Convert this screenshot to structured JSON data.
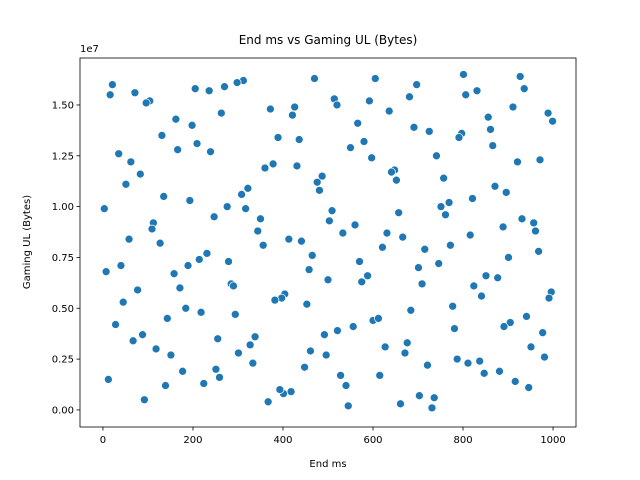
{
  "chart_data": {
    "type": "scatter",
    "title": "End ms vs Gaming UL (Bytes)",
    "x_label": "End ms",
    "y_label": "Gaming UL (Bytes)",
    "y_offset_label": "1e7",
    "color": "#1f77b4",
    "xlim": [
      -51,
      1051
    ],
    "ylim": [
      -0.084,
      1.731
    ],
    "xticks": [
      0,
      200,
      400,
      600,
      800,
      1000
    ],
    "yticks": [
      {
        "value": 0,
        "label": "0.00"
      },
      0.25,
      {
        "value": 0.5,
        "label": "0.50"
      },
      0.75,
      {
        "value": 1,
        "label": "1.00"
      },
      1.25,
      {
        "value": 1.5,
        "label": "1.50"
      }
    ],
    "series": [
      {
        "name": "Gaming UL (Bytes)",
        "color": "#1f77b4",
        "x": [
          3,
          21,
          45,
          62,
          88,
          104,
          127,
          143,
          166,
          189,
          205,
          224,
          247,
          263,
          285,
          301,
          322,
          344,
          367,
          389,
          404,
          426,
          448,
          465,
          487,
          503,
          521,
          545,
          566,
          588,
          605,
          627,
          648,
          666,
          684,
          703,
          725,
          746,
          769,
          787,
          806,
          824,
          847,
          866,
          889,
          905,
          927,
          946,
          968,
          989,
          12,
          35,
          58,
          77,
          96,
          118,
          135,
          158,
          177,
          198,
          214,
          236,
          255,
          276,
          294,
          312,
          333,
          356,
          378,
          397,
          418,
          436,
          458,
          476,
          496,
          514,
          533,
          556,
          575,
          597,
          615,
          636,
          657,
          676,
          697,
          715,
          736,
          757,
          777,
          797,
          816,
          837,
          856,
          877,
          896,
          916,
          936,
          957,
          977,
          996,
          7,
          28,
          51,
          71,
          92,
          112,
          131,
          151,
          171,
          193,
          218,
          239,
          259,
          279,
          298,
          317,
          338,
          360,
          382,
          401,
          421,
          441,
          461,
          481,
          500,
          520,
          540,
          560,
          580,
          600,
          621,
          641,
          661,
          681,
          701,
          721,
          741,
          761,
          781,
          801,
          821,
          841,
          861,
          881,
          901,
          921,
          941,
          961,
          981,
          999,
          16,
          40,
          67,
          83,
          109,
          139,
          162,
          184,
          209,
          231,
          251,
          270,
          290,
          308,
          327,
          350,
          372,
          393,
          413,
          431,
          453,
          470,
          492,
          509,
          528,
          550,
          570,
          592,
          612,
          631,
          652,
          671,
          691,
          709,
          731,
          751,
          772,
          791,
          811,
          831,
          851,
          871,
          891,
          911,
          931,
          951,
          971,
          991
        ],
        "values": [
          0.99,
          1.6,
          0.53,
          1.22,
          0.37,
          1.52,
          0.82,
          0.45,
          1.28,
          0.71,
          1.58,
          0.13,
          0.95,
          1.46,
          0.62,
          0.28,
          1.09,
          0.88,
          0.04,
          1.34,
          0.57,
          1.49,
          0.21,
          0.76,
          1.15,
          0.93,
          0.39,
          0.02,
          1.41,
          0.66,
          1.63,
          0.31,
          1.18,
          0.85,
          0.49,
          0.07,
          1.37,
          0.72,
          1.02,
          0.25,
          1.55,
          0.61,
          0.18,
          1.3,
          0.9,
          0.43,
          1.64,
          0.11,
          0.78,
          1.46,
          0.15,
          1.26,
          0.84,
          0.59,
          1.51,
          0.3,
          1.05,
          0.67,
          0.19,
          1.4,
          0.74,
          1.57,
          0.35,
          1.0,
          0.47,
          1.62,
          0.23,
          0.81,
          1.21,
          0.55,
          0.09,
          1.33,
          0.69,
          1.12,
          0.27,
          1.53,
          0.87,
          0.41,
          0.63,
          1.24,
          0.17,
          1.47,
          0.97,
          0.33,
          1.6,
          0.79,
          0.06,
          1.14,
          0.51,
          1.36,
          0.86,
          0.24,
          1.44,
          0.65,
          1.07,
          0.14,
          1.58,
          0.92,
          0.38,
          0.58,
          0.68,
          0.42,
          1.11,
          1.56,
          0.05,
          0.92,
          1.35,
          0.27,
          0.6,
          1.03,
          0.48,
          1.27,
          0.16,
          0.73,
          1.61,
          0.99,
          0.36,
          1.19,
          0.54,
          0.08,
          1.45,
          0.83,
          0.29,
          1.08,
          0.64,
          1.5,
          0.12,
          0.91,
          1.32,
          0.44,
          0.8,
          1.17,
          0.03,
          1.54,
          0.7,
          0.22,
          1.25,
          0.96,
          0.4,
          1.65,
          1.04,
          0.56,
          1.38,
          0.19,
          0.75,
          1.22,
          0.46,
          0.88,
          0.26,
          1.42,
          1.55,
          0.71,
          0.34,
          1.16,
          0.89,
          0.12,
          1.43,
          0.5,
          1.31,
          0.77,
          0.2,
          1.59,
          0.61,
          1.06,
          0.32,
          0.94,
          1.48,
          0.1,
          0.84,
          1.2,
          0.52,
          1.63,
          0.37,
          0.98,
          0.17,
          1.29,
          0.73,
          1.52,
          0.45,
          0.87,
          1.13,
          0.28,
          1.39,
          0.62,
          0.01,
          1.0,
          0.81,
          1.34,
          0.23,
          1.57,
          0.66,
          1.1,
          0.41,
          1.49,
          0.94,
          0.31,
          1.23,
          0.55
        ]
      }
    ]
  }
}
